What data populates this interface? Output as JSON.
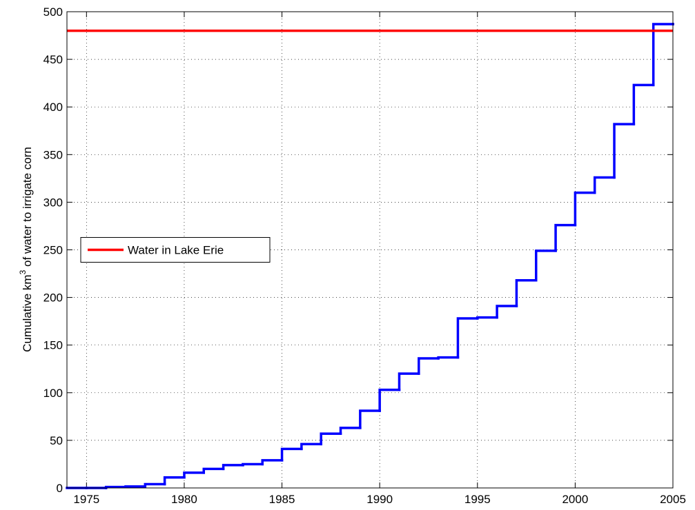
{
  "chart_data": {
    "type": "line",
    "ylabel": [
      "Cumulative km",
      "3",
      " of water to irrigate corn"
    ],
    "xlim": [
      1974,
      2005
    ],
    "xticks": [
      1975,
      1980,
      1985,
      1990,
      1995,
      2000,
      2005
    ],
    "ylim": [
      0,
      500
    ],
    "yticks": [
      0,
      50,
      100,
      150,
      200,
      250,
      300,
      350,
      400,
      450,
      500
    ],
    "grid": true,
    "legend": "west",
    "series": [
      {
        "color": "#0000ff",
        "step": true,
        "x": [
          1974,
          1975,
          1976,
          1977,
          1978,
          1979,
          1980,
          1981,
          1982,
          1983,
          1984,
          1985,
          1986,
          1987,
          1988,
          1989,
          1990,
          1991,
          1992,
          1993,
          1994,
          1995,
          1996,
          1997,
          1998,
          1999,
          2000,
          2001,
          2002,
          2003,
          2004,
          2005
        ],
        "values": [
          0,
          0,
          1,
          1.5,
          4,
          11,
          16,
          20,
          24,
          25,
          29,
          41,
          46,
          57,
          63,
          81,
          103,
          120,
          136,
          137,
          178,
          179,
          191,
          218,
          249,
          276,
          310,
          326,
          382,
          423,
          487,
          487
        ]
      },
      {
        "name": "Water in Lake Erie",
        "color": "#ff0000",
        "x": [
          1974,
          2005
        ],
        "values": [
          480,
          480
        ]
      }
    ]
  }
}
